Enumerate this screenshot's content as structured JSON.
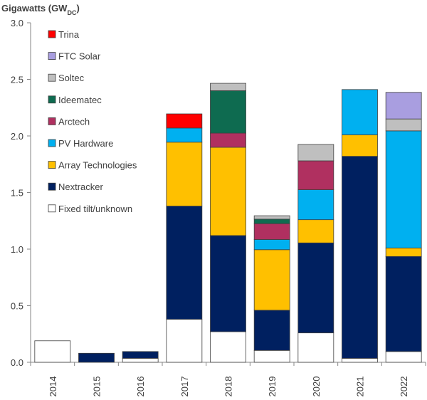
{
  "chart_data": {
    "type": "bar",
    "stacked": true,
    "title": "",
    "ylabel": "Gigawatts (GW",
    "ylabel_subscript": "DC",
    "ylabel_suffix": ")",
    "xlabel": "",
    "ylim": [
      0,
      3.0
    ],
    "yticks": [
      0.0,
      0.5,
      1.0,
      1.5,
      2.0,
      2.5,
      3.0
    ],
    "ytick_labels": [
      "0.0",
      "0.5",
      "1.0",
      "1.5",
      "2.0",
      "2.5",
      "3.0"
    ],
    "grid": false,
    "legend_position": "top-left",
    "categories": [
      "2014",
      "2015",
      "2016",
      "2017",
      "2018",
      "2019",
      "2020",
      "2021",
      "2022"
    ],
    "series": [
      {
        "name": "Fixed tilt/unknown",
        "color": "#ffffff",
        "values": [
          0.19,
          0,
          0.035,
          0.38,
          0.27,
          0.105,
          0.26,
          0.035,
          0.095
        ]
      },
      {
        "name": "Nextracker",
        "color": "#002060",
        "values": [
          0,
          0.08,
          0.06,
          1.0,
          0.85,
          0.355,
          0.795,
          1.785,
          0.84
        ]
      },
      {
        "name": "Array Technologies",
        "color": "#ffc000",
        "values": [
          0,
          0,
          0,
          0.565,
          0.78,
          0.535,
          0.205,
          0.19,
          0.075
        ]
      },
      {
        "name": "PV Hardware",
        "color": "#00b0f0",
        "values": [
          0,
          0,
          0,
          0.125,
          0,
          0.09,
          0.265,
          0.4,
          1.035
        ]
      },
      {
        "name": "Arctech",
        "color": "#b03060",
        "values": [
          0,
          0,
          0,
          0,
          0.125,
          0.14,
          0.255,
          0,
          0
        ]
      },
      {
        "name": "Ideematec",
        "color": "#0e6b50",
        "values": [
          0,
          0,
          0,
          0,
          0.375,
          0.04,
          0,
          0,
          0
        ]
      },
      {
        "name": "Soltec",
        "color": "#bfbfbf",
        "values": [
          0,
          0,
          0,
          0,
          0.065,
          0.03,
          0.145,
          0,
          0.105
        ]
      },
      {
        "name": "FTC Solar",
        "color": "#a99ee0",
        "values": [
          0,
          0,
          0,
          0,
          0,
          0,
          0,
          0,
          0.235
        ]
      },
      {
        "name": "Trina",
        "color": "#ff0000",
        "values": [
          0,
          0,
          0,
          0.125,
          0,
          0,
          0,
          0,
          0
        ]
      }
    ],
    "legend_order": [
      "Trina",
      "FTC Solar",
      "Soltec",
      "Ideematec",
      "Arctech",
      "PV Hardware",
      "Array Technologies",
      "Nextracker",
      "Fixed tilt/unknown"
    ]
  }
}
